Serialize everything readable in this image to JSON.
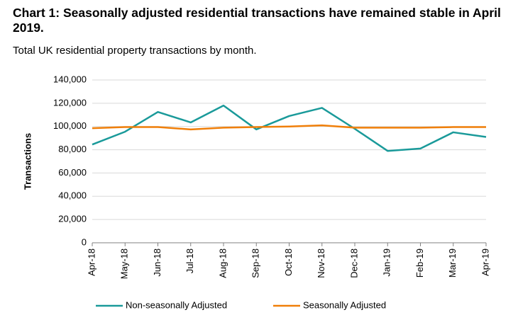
{
  "chart_data": {
    "type": "line",
    "title": "Chart 1: Seasonally adjusted residential transactions have remained stable in April 2019.",
    "subtitle": "Total UK residential property transactions by month.",
    "y_label": "Transactions",
    "categories": [
      "Apr-18",
      "May-18",
      "Jun-18",
      "Jul-18",
      "Aug-18",
      "Sep-18",
      "Oct-18",
      "Nov-18",
      "Dec-18",
      "Jan-19",
      "Feb-19",
      "Mar-19",
      "Apr-19"
    ],
    "series": [
      {
        "name": "Non-seasonally Adjusted",
        "color": "#1a9a9a",
        "values": [
          84500,
          95500,
          112500,
          103500,
          118000,
          97500,
          109000,
          116000,
          98000,
          79000,
          81000,
          95000,
          91000
        ]
      },
      {
        "name": "Seasonally Adjusted",
        "color": "#f07f09",
        "values": [
          98500,
          99500,
          99500,
          97500,
          99000,
          99500,
          100000,
          101000,
          99000,
          99000,
          99000,
          99500,
          99500
        ]
      }
    ],
    "ylim": [
      0,
      140000
    ],
    "yticks": [
      0,
      {
        "value": 20000,
        "label": "20,000"
      },
      {
        "value": 40000,
        "label": "40,000"
      },
      {
        "value": 60000,
        "label": "60,000"
      },
      {
        "value": 80000,
        "label": "80,000"
      },
      {
        "value": 100000,
        "label": "100,000"
      },
      {
        "value": 120000,
        "label": "120,000"
      },
      {
        "value": 140000,
        "label": "140,000"
      }
    ],
    "grid": true
  }
}
